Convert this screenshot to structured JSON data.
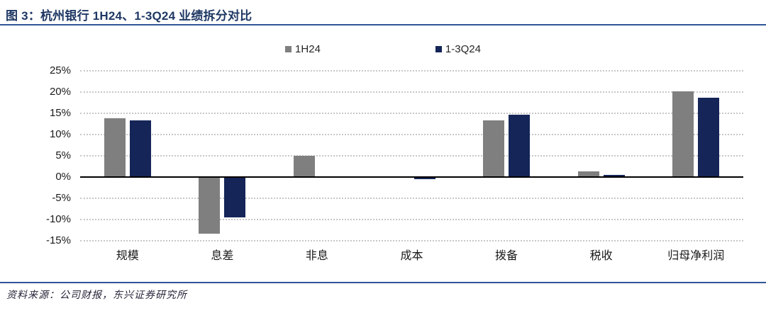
{
  "figure": {
    "title": "图 3：杭州银行 1H24、1-3Q24 业绩拆分对比",
    "source": "资料来源：公司财报，东兴证券研究所"
  },
  "colors": {
    "title": "#1F3864",
    "rule": "#2F5597",
    "axis": "#000000",
    "gridline": "#C7C7C7",
    "series_1h24": "#7F7F7F",
    "series_13q24": "#152558"
  },
  "chart_data": {
    "type": "bar",
    "title": "图 3：杭州银行 1H24、1-3Q24 业绩拆分对比",
    "categories": [
      "规模",
      "息差",
      "非息",
      "成本",
      "拨备",
      "税收",
      "归母净利润"
    ],
    "series": [
      {
        "name": "1H24",
        "color_key": "series_1h24",
        "values": [
          13.8,
          -13.4,
          5.0,
          0.0,
          13.4,
          1.3,
          20.1
        ]
      },
      {
        "name": "1-3Q24",
        "color_key": "series_13q24",
        "values": [
          13.4,
          -9.5,
          0.0,
          -0.5,
          14.6,
          0.5,
          18.6
        ]
      }
    ],
    "ylim": [
      -15,
      25
    ],
    "ytick_step": 5,
    "yticks": [
      {
        "value": 25,
        "label": "25%"
      },
      {
        "value": 20,
        "label": "20%"
      },
      {
        "value": 15,
        "label": "15%"
      },
      {
        "value": 10,
        "label": "10%"
      },
      {
        "value": 5,
        "label": "5%"
      },
      {
        "value": 0,
        "label": "0%"
      },
      {
        "value": -5,
        "label": "-5%"
      },
      {
        "value": -10,
        "label": "-10%"
      },
      {
        "value": -15,
        "label": "-15%"
      }
    ],
    "xlabel": "",
    "ylabel": "",
    "grid": "horizontal-dotted",
    "legend_position": "top-center"
  }
}
